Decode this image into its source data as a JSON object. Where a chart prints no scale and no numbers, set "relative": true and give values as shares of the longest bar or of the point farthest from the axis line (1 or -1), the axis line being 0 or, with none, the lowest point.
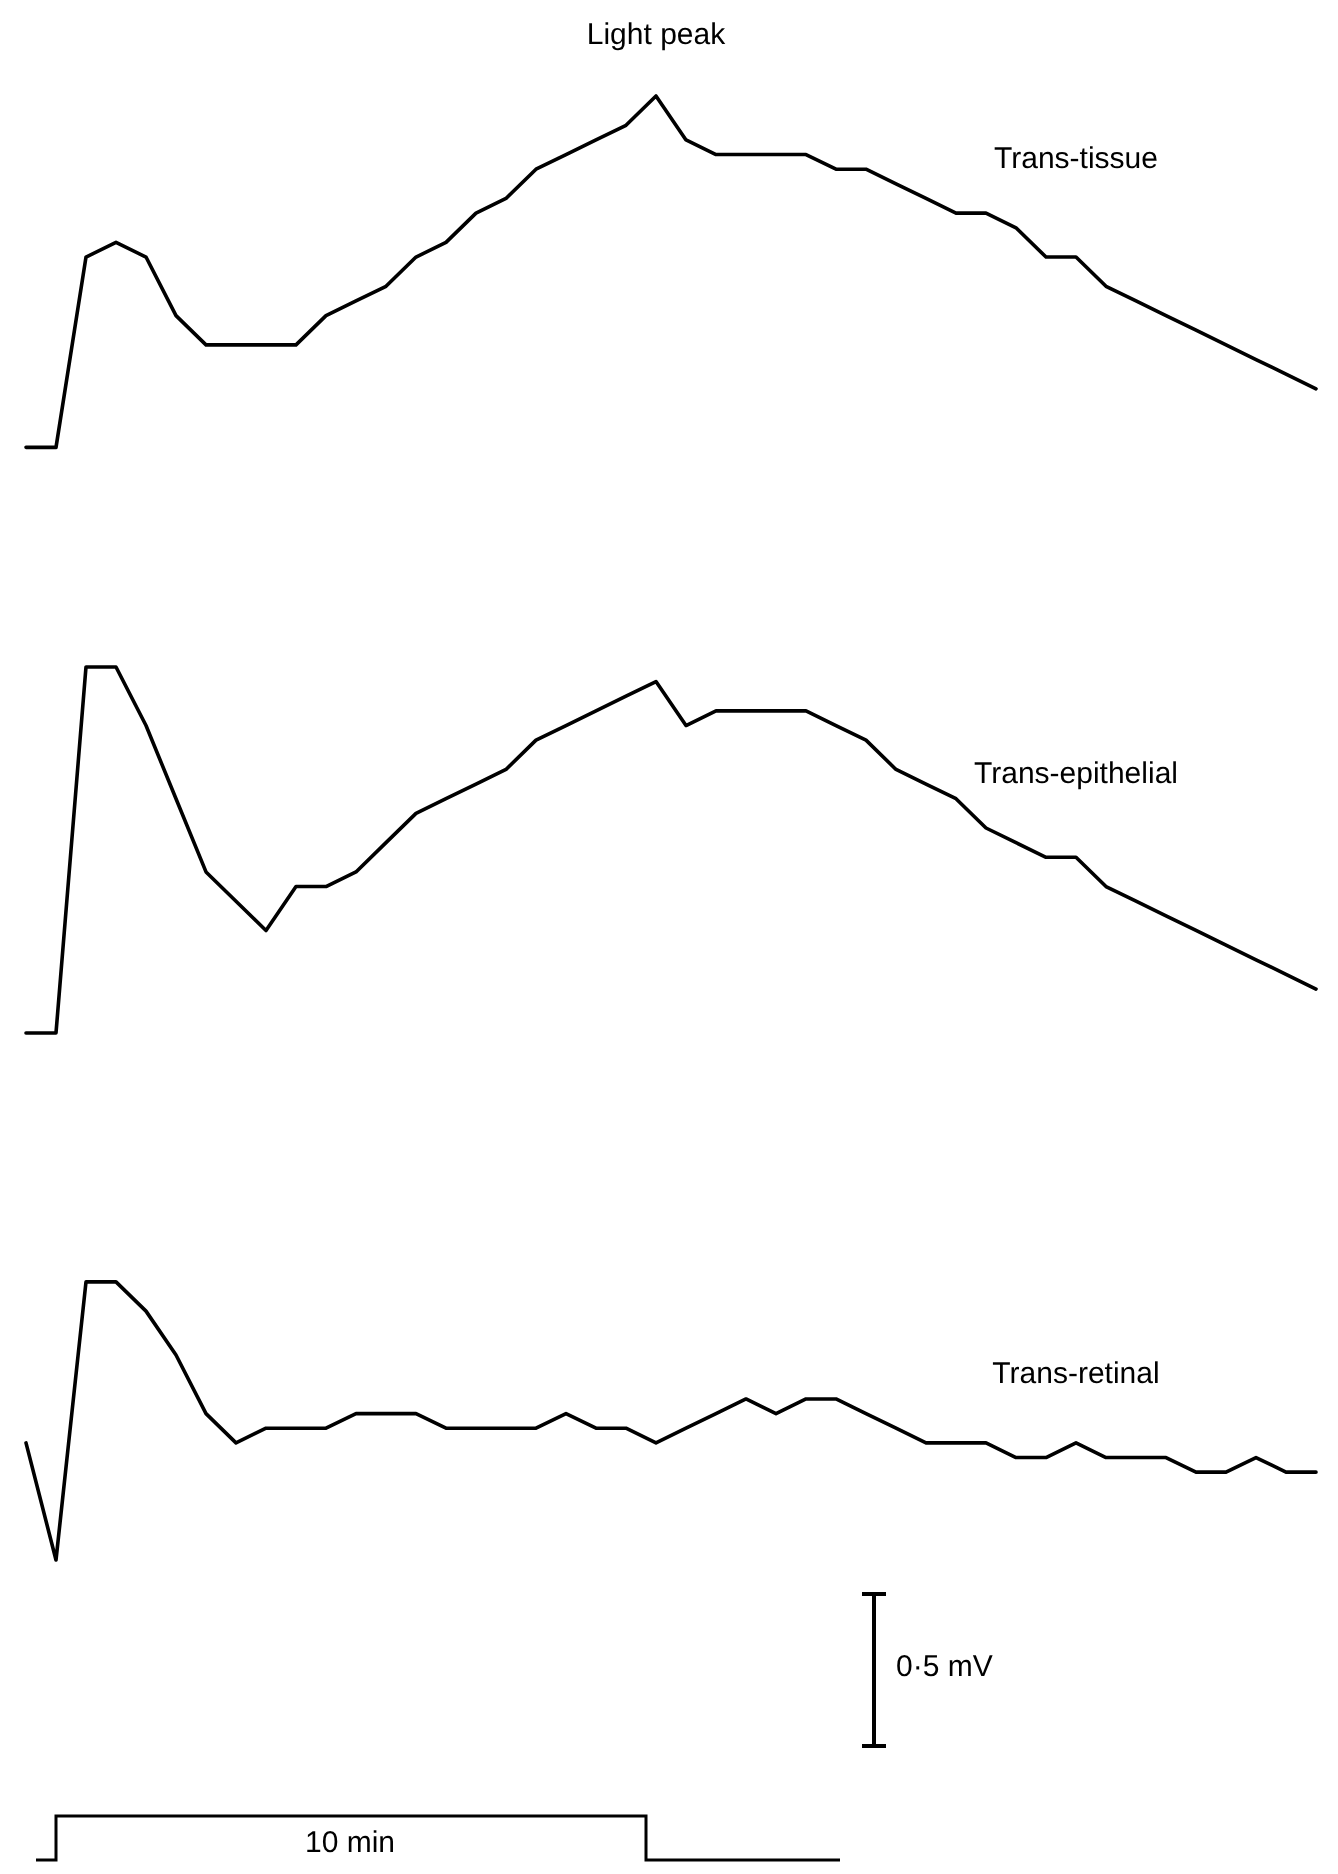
{
  "chart_data": {
    "type": "line",
    "relative": true,
    "categories": [
      null,
      null,
      null,
      null,
      null,
      null,
      null,
      null,
      null,
      null,
      null,
      null,
      null,
      null,
      null,
      null,
      null,
      null,
      null,
      null,
      null,
      null,
      null,
      null,
      null,
      null,
      null,
      null,
      null,
      null,
      null,
      null,
      null,
      null,
      null,
      null,
      null,
      null,
      null,
      null,
      null,
      null,
      null,
      null
    ],
    "series": [
      {
        "name": "Trans-tissue",
        "color": "#000000",
        "values": [
          0.76,
          0.76,
          0.89,
          0.9,
          0.89,
          0.85,
          0.83,
          0.83,
          0.83,
          0.83,
          0.85,
          0.86,
          0.87,
          0.89,
          0.9,
          0.92,
          0.93,
          0.95,
          0.96,
          0.97,
          0.98,
          1.0,
          0.97,
          0.96,
          0.96,
          0.96,
          0.96,
          0.95,
          0.95,
          0.94,
          0.93,
          0.92,
          0.92,
          0.91,
          0.89,
          0.89,
          0.87,
          0.86,
          0.85,
          0.84,
          0.83,
          0.82,
          0.81,
          0.8
        ]
      },
      {
        "name": "Trans-epithelial",
        "color": "#000000",
        "values": [
          0.36,
          0.36,
          0.61,
          0.61,
          0.57,
          0.52,
          0.47,
          0.45,
          0.43,
          0.46,
          0.46,
          0.47,
          0.49,
          0.51,
          0.52,
          0.53,
          0.54,
          0.56,
          0.57,
          0.58,
          0.59,
          0.6,
          0.57,
          0.58,
          0.58,
          0.58,
          0.58,
          0.57,
          0.56,
          0.54,
          0.53,
          0.52,
          0.5,
          0.49,
          0.48,
          0.48,
          0.46,
          0.45,
          0.44,
          0.43,
          0.42,
          0.41,
          0.4,
          0.39
        ]
      },
      {
        "name": "Trans-retinal",
        "color": "#000000",
        "values": [
          0.08,
          0,
          0.19,
          0.19,
          0.17,
          0.14,
          0.1,
          0.08,
          0.09,
          0.09,
          0.09,
          0.1,
          0.1,
          0.1,
          0.09,
          0.09,
          0.09,
          0.09,
          0.1,
          0.09,
          0.09,
          0.08,
          0.09,
          0.1,
          0.11,
          0.1,
          0.11,
          0.11,
          0.1,
          0.09,
          0.08,
          0.08,
          0.08,
          0.07,
          0.07,
          0.08,
          0.07,
          0.07,
          0.07,
          0.06,
          0.06,
          0.07,
          0.06,
          0.06
        ]
      }
    ],
    "annotations": [
      {
        "text": "Light peak",
        "y": 1.0
      },
      "0·5 mV",
      "10 min"
    ]
  }
}
